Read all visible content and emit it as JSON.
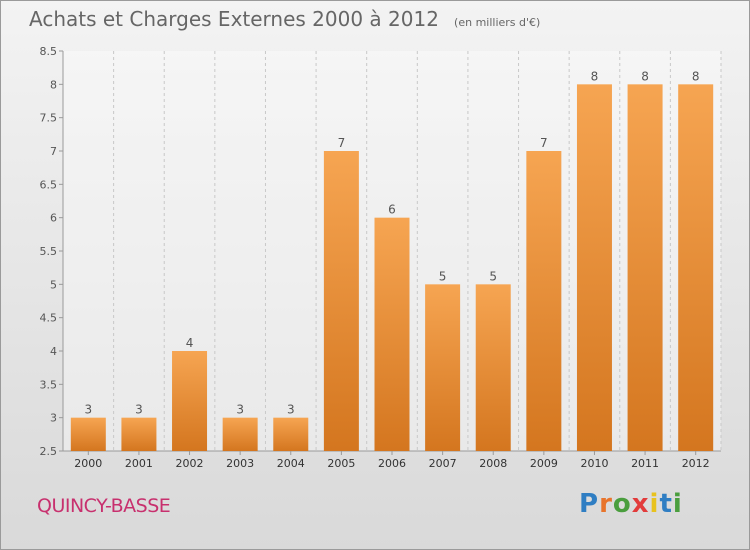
{
  "title": "Achats et Charges Externes 2000 à 2012",
  "unit_note": "(en milliers d'€)",
  "location": "QUINCY-BASSE",
  "brand": {
    "text": "Proxiti",
    "letter_colors": [
      "#2f7ec3",
      "#e8742b",
      "#4a9e3e",
      "#e23b3b",
      "#e8c21e",
      "#2f7ec3",
      "#4a9e3e"
    ]
  },
  "colors": {
    "bar_top": "#f6a552",
    "bar_bottom": "#d4761f",
    "grid": "#c8c8c8",
    "label": "#555555"
  },
  "chart_data": {
    "type": "bar",
    "title": "Achats et Charges Externes 2000 à 2012",
    "xlabel": "",
    "ylabel": "",
    "categories": [
      "2000",
      "2001",
      "2002",
      "2003",
      "2004",
      "2005",
      "2006",
      "2007",
      "2008",
      "2009",
      "2010",
      "2011",
      "2012"
    ],
    "values": [
      3,
      3,
      4,
      3,
      3,
      7,
      6,
      5,
      5,
      7,
      8,
      8,
      8
    ],
    "data_labels": [
      "3",
      "3",
      "4",
      "3",
      "3",
      "7",
      "6",
      "5",
      "5",
      "7",
      "8",
      "8",
      "8"
    ],
    "ylim": [
      2.5,
      8.5
    ],
    "yticks": [
      "2.5",
      "3",
      "3.5",
      "4",
      "4.5",
      "5",
      "5.5",
      "6",
      "6.5",
      "7",
      "7.5",
      "8",
      "8.5"
    ],
    "grid": "vertical dashed",
    "legend": "none"
  }
}
